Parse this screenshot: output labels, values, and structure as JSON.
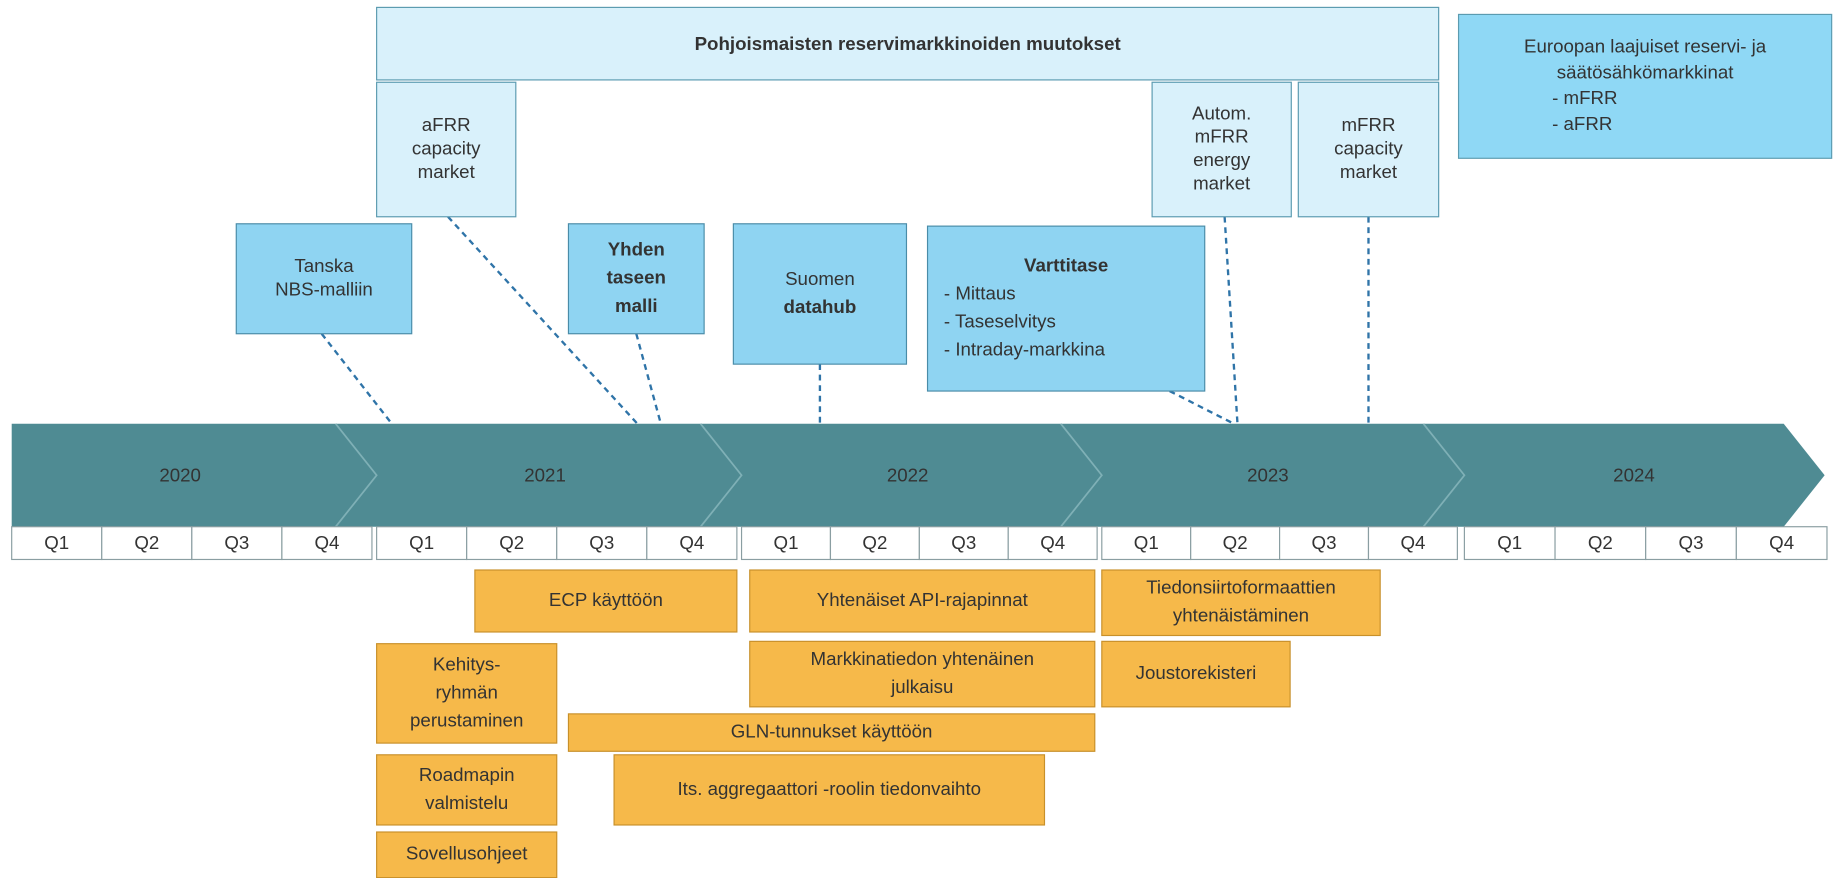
{
  "header": {
    "title": "Pohjoismaisten reservimarkkinoiden muutokset"
  },
  "nordic_boxes": [
    {
      "lines": [
        "aFRR",
        "capacity",
        "market"
      ]
    },
    {
      "lines": [
        "Autom.",
        "mFRR",
        "energy",
        "market"
      ]
    },
    {
      "lines": [
        "mFRR",
        "capacity",
        "market"
      ]
    }
  ],
  "european_box": {
    "lines": [
      "Euroopan laajuiset reservi- ja",
      "säätösähkömarkkinat"
    ],
    "items": [
      "- mFRR",
      "- aFRR"
    ]
  },
  "milestones": [
    {
      "lines": [
        "Tanska",
        "NBS-malliin"
      ]
    },
    {
      "lines": [
        "Yhden",
        "taseen",
        "malli"
      ]
    },
    {
      "lines": [
        "Suomen",
        "datahub"
      ]
    },
    {
      "lines": [
        "Varttitase"
      ],
      "items": [
        "- Mittaus",
        "- Taseselvitys",
        "- Intraday-markkina"
      ]
    }
  ],
  "timeline": {
    "years": [
      {
        "label": "2020",
        "quarters": [
          "Q1",
          "Q2",
          "Q3",
          "Q4"
        ]
      },
      {
        "label": "2021",
        "quarters": [
          "Q1",
          "Q2",
          "Q3",
          "Q4"
        ]
      },
      {
        "label": "2022",
        "quarters": [
          "Q1",
          "Q2",
          "Q3",
          "Q4"
        ]
      },
      {
        "label": "2023",
        "quarters": [
          "Q1",
          "Q2",
          "Q3",
          "Q4"
        ]
      },
      {
        "label": "2024",
        "quarters": [
          "Q1",
          "Q2",
          "Q3",
          "Q4"
        ]
      }
    ]
  },
  "tasks": [
    {
      "lines": [
        "ECP käyttöön"
      ]
    },
    {
      "lines": [
        "Yhtenäiset API-rajapinnat"
      ]
    },
    {
      "lines": [
        "Tiedonsiirtoformaattien",
        "yhtenäistäminen"
      ]
    },
    {
      "lines": [
        "Kehitys-",
        "ryhmän",
        "perustaminen"
      ]
    },
    {
      "lines": [
        "Markkinatiedon yhtenäinen",
        "julkaisu"
      ]
    },
    {
      "lines": [
        "Joustorekisteri"
      ]
    },
    {
      "lines": [
        "GLN-tunnukset käyttöön"
      ]
    },
    {
      "lines": [
        "Roadmapin",
        "valmistelu"
      ]
    },
    {
      "lines": [
        "Its. aggregaattori -roolin tiedonvaihto"
      ]
    },
    {
      "lines": [
        "Sovellusohjeet"
      ]
    }
  ]
}
